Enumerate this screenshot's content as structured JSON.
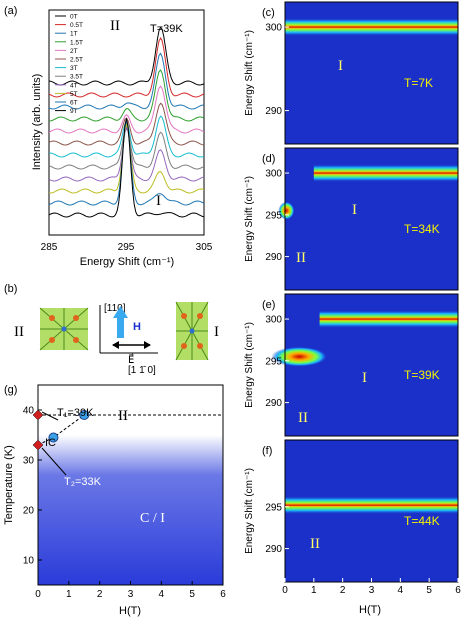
{
  "colors": {
    "spectra": [
      "#000000",
      "#d62728",
      "#1f77b4",
      "#2ca02c",
      "#e377c2",
      "#8c564b",
      "#17becf",
      "#7f7f7f",
      "#9467bd",
      "#bcbd22",
      "#1f77b4",
      "#000000",
      "#d62728"
    ],
    "map_background": "#1b2fc9",
    "phase_blue": "#2a3bd9",
    "marker_red": "#d11f1f",
    "marker_blue": "#3aa0e8",
    "arrow_blue": "#39a9f0"
  },
  "panels": {
    "a": {
      "label": "(a)",
      "temp": "T=39K",
      "phase_II": "II",
      "phase_I": "I",
      "xlabel": "Energy Shift (cm⁻¹)",
      "ylabel": "Intensity (arb. units)",
      "xticks": [
        "285",
        "295",
        "305"
      ]
    },
    "b": {
      "label": "(b)",
      "phase_II": "II",
      "phase_I": "I",
      "h": "H",
      "e": "E⃗",
      "dir_up": "[110]",
      "dir_right": "[1 1̄ 0]"
    },
    "g": {
      "label": "(g)",
      "t1": "T₁=39K",
      "t2": "T₂=33K",
      "ic": "IC",
      "ci": "C / I",
      "phase_II": "II",
      "ylabel": "Temperature (K)",
      "xlabel": "H(T)",
      "xticks": [
        "0",
        "1",
        "2",
        "3",
        "4",
        "5",
        "6"
      ],
      "yticks": [
        "10",
        "20",
        "30",
        "40"
      ]
    },
    "maps": {
      "ylabel": "Energy Shift (cm⁻¹)",
      "xlabel": "H(T)",
      "xticks": [
        "0",
        "1",
        "2",
        "3",
        "4",
        "5",
        "6"
      ],
      "items": [
        {
          "label": "(c)",
          "temp": "T=7K",
          "yticks": [
            "300",
            "290"
          ],
          "phases": [
            "I"
          ]
        },
        {
          "label": "(d)",
          "temp": "T=34K",
          "yticks": [
            "300",
            "295",
            "290"
          ],
          "phases": [
            "I",
            "II"
          ]
        },
        {
          "label": "(e)",
          "temp": "T=39K",
          "yticks": [
            "300",
            "295",
            "290"
          ],
          "phases": [
            "I",
            "II"
          ]
        },
        {
          "label": "(f)",
          "temp": "T=44K",
          "yticks": [
            "295",
            "290"
          ],
          "phases": [
            "II"
          ]
        }
      ]
    }
  },
  "chart_data": [
    {
      "type": "line",
      "panel": "a",
      "title": "T=39K",
      "xlabel": "Energy Shift (cm⁻¹)",
      "ylabel": "Intensity (arb. units)",
      "xlim": [
        285,
        305
      ],
      "series": [
        {
          "name": "0T",
          "peak_II": 0.0,
          "peak_I": 1.0
        },
        {
          "name": "0.5T",
          "peak_II": 0.0,
          "peak_I": 1.0
        },
        {
          "name": "1T",
          "peak_II": 0.05,
          "peak_I": 0.95
        },
        {
          "name": "1.5T",
          "peak_II": 0.1,
          "peak_I": 0.9
        },
        {
          "name": "2T",
          "peak_II": 0.15,
          "peak_I": 0.85
        },
        {
          "name": "2.5T",
          "peak_II": 0.25,
          "peak_I": 0.75
        },
        {
          "name": "3T",
          "peak_II": 0.35,
          "peak_I": 0.7
        },
        {
          "name": "3.5T",
          "peak_II": 0.45,
          "peak_I": 0.6
        },
        {
          "name": "4T",
          "peak_II": 0.55,
          "peak_I": 0.5
        },
        {
          "name": "5T",
          "peak_II": 0.7,
          "peak_I": 0.35
        },
        {
          "name": "6T",
          "peak_II": 0.85,
          "peak_I": 0.2
        },
        {
          "name": "9T",
          "peak_II": 1.0,
          "peak_I": 0.05
        }
      ]
    },
    {
      "type": "line",
      "panel": "g",
      "xlabel": "H(T)",
      "ylabel": "Temperature (K)",
      "xlim": [
        0,
        6
      ],
      "ylim": [
        5,
        45
      ],
      "points_red": [
        [
          0,
          39
        ],
        [
          0,
          33
        ]
      ],
      "points_blue": [
        [
          0.5,
          34.5
        ],
        [
          1.5,
          39
        ]
      ],
      "boundary_T1": 39
    },
    {
      "type": "heatmap",
      "panels": [
        "c",
        "d",
        "e",
        "f"
      ],
      "xlabel": "H(T)",
      "ylabel": "Energy Shift (cm⁻¹)",
      "xlim": [
        0,
        6
      ],
      "ylim": [
        286,
        303
      ]
    }
  ]
}
